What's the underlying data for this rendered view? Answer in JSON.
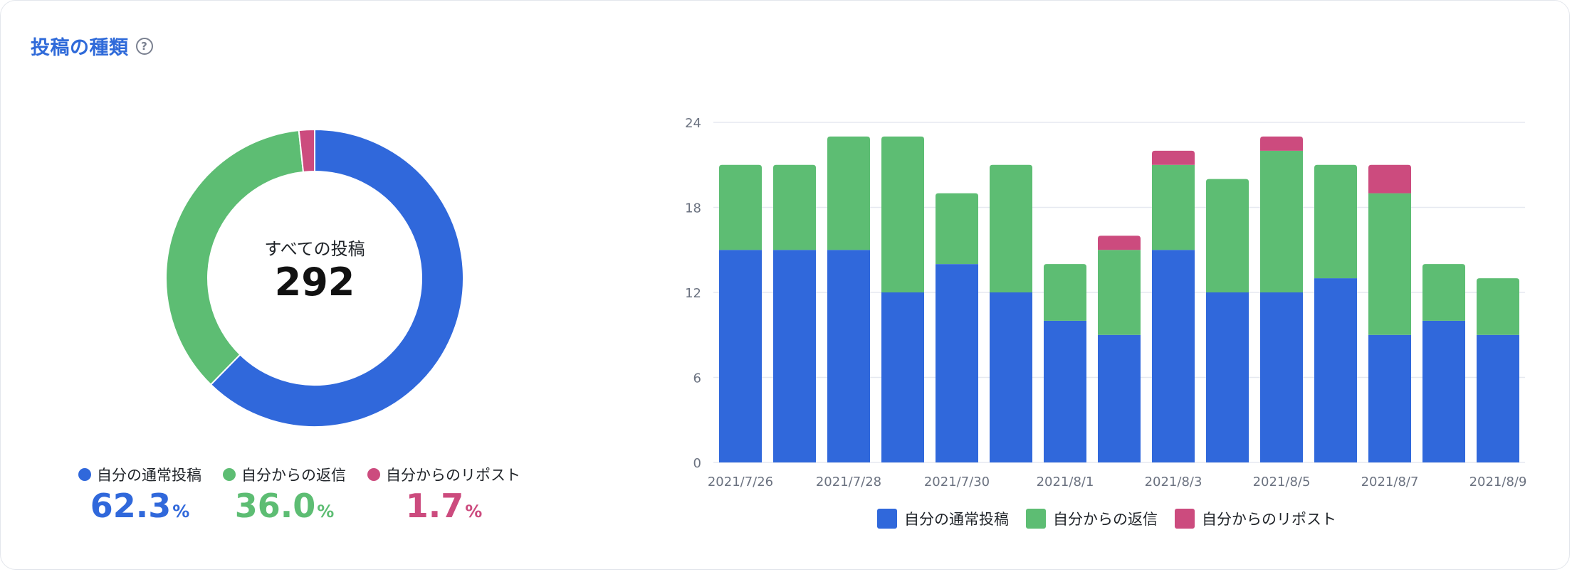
{
  "header": {
    "title": "投稿の種類",
    "help_icon": "question-circle-icon",
    "help_glyph": "?"
  },
  "colors": {
    "normal": "#3068db",
    "reply": "#5dbd73",
    "repost": "#cc4b7e",
    "grid": "#e6e9f0",
    "tick": "#6b7280"
  },
  "donut": {
    "center_label": "すべての投稿",
    "total": "292",
    "legend": [
      {
        "label": "自分の通常投稿",
        "value": "62.3",
        "unit": "%",
        "color": "#3068db"
      },
      {
        "label": "自分からの返信",
        "value": "36.0",
        "unit": "%",
        "color": "#5dbd73"
      },
      {
        "label": "自分からのリポスト",
        "value": "1.7",
        "unit": "%",
        "color": "#cc4b7e"
      }
    ]
  },
  "chart_data": [
    {
      "type": "pie",
      "categories": [
        "自分の通常投稿",
        "自分からの返信",
        "自分からのリポスト"
      ],
      "values": [
        62.3,
        36.0,
        1.7
      ],
      "colors": [
        "#3068db",
        "#5dbd73",
        "#cc4b7e"
      ]
    },
    {
      "type": "bar",
      "stacked": true,
      "categories": [
        "2021/7/26",
        "2021/7/27",
        "2021/7/28",
        "2021/7/29",
        "2021/7/30",
        "2021/7/31",
        "2021/8/1",
        "2021/8/2",
        "2021/8/3",
        "2021/8/4",
        "2021/8/5",
        "2021/8/6",
        "2021/8/7",
        "2021/8/8",
        "2021/8/9"
      ],
      "x_tick_labels": [
        "2021/7/26",
        "2021/7/28",
        "2021/7/30",
        "2021/8/1",
        "2021/8/3",
        "2021/8/5",
        "2021/8/7",
        "2021/8/9"
      ],
      "series": [
        {
          "name": "自分の通常投稿",
          "color": "#3068db",
          "values": [
            15,
            15,
            15,
            12,
            14,
            12,
            10,
            9,
            15,
            12,
            12,
            13,
            9,
            10,
            9
          ]
        },
        {
          "name": "自分からの返信",
          "color": "#5dbd73",
          "values": [
            6,
            6,
            8,
            11,
            5,
            9,
            4,
            6,
            6,
            8,
            10,
            8,
            10,
            4,
            4
          ]
        },
        {
          "name": "自分からのリポスト",
          "color": "#cc4b7e",
          "values": [
            0,
            0,
            0,
            0,
            0,
            0,
            0,
            1,
            1,
            0,
            1,
            0,
            2,
            0,
            0
          ]
        }
      ],
      "ylim": [
        0,
        24
      ],
      "y_ticks": [
        "0",
        "6",
        "12",
        "18",
        "24"
      ],
      "grid": true,
      "legend": "bottom"
    }
  ]
}
